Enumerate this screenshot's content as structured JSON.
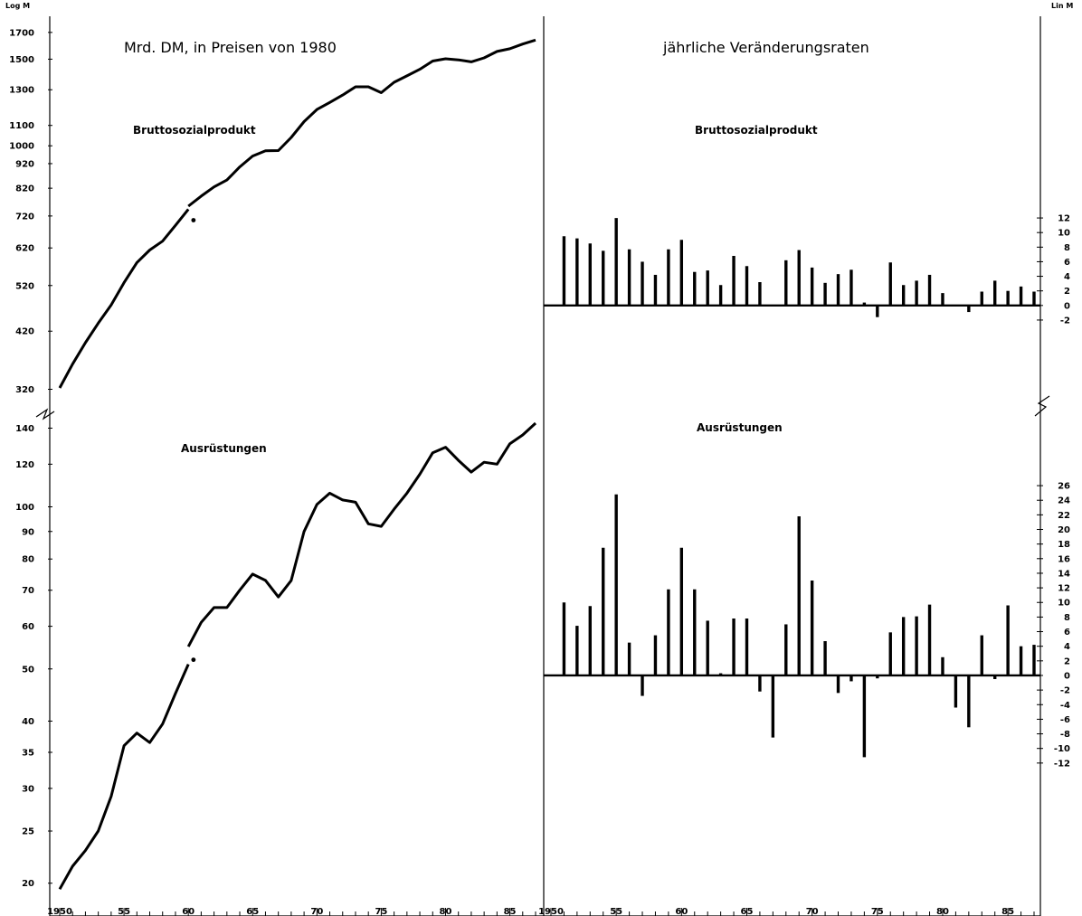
{
  "chart_data": [
    {
      "type": "line",
      "panel": "top-left",
      "title": "Mrd. DM, in Preisen von 1980",
      "label": "Bruttosozialprodukt",
      "axis_note": "Log M",
      "yscale": "log",
      "ylim": [
        310,
        1750
      ],
      "yticks": [
        320,
        420,
        520,
        620,
        720,
        820,
        920,
        1000,
        1100,
        1300,
        1500,
        1700
      ],
      "ytick_labels": [
        "320",
        "420",
        "520",
        "620",
        "720",
        "820",
        "920",
        "1000",
        "1100",
        "1300",
        "1500",
        "1700"
      ],
      "x": [
        1950,
        1951,
        1952,
        1953,
        1954,
        1955,
        1956,
        1957,
        1958,
        1959,
        1960,
        1960,
        1961,
        1962,
        1963,
        1964,
        1965,
        1966,
        1967,
        1968,
        1969,
        1970,
        1971,
        1972,
        1973,
        1974,
        1975,
        1976,
        1977,
        1978,
        1979,
        1980,
        1981,
        1982,
        1983,
        1984,
        1985,
        1986,
        1987
      ],
      "values": [
        322,
        360,
        398,
        436,
        475,
        527,
        579,
        614,
        640,
        689,
        743,
        754,
        790,
        825,
        852,
        906,
        953,
        977,
        978,
        1040,
        1120,
        1185,
        1225,
        1268,
        1318,
        1318,
        1282,
        1346,
        1387,
        1431,
        1487,
        1503,
        1495,
        1481,
        1509,
        1555,
        1575,
        1610,
        1640
      ],
      "break_after_index": 10,
      "marker": {
        "x": 1960.4,
        "y": 706
      }
    },
    {
      "type": "line",
      "panel": "bottom-left",
      "label": "Ausrüstungen",
      "yscale": "log",
      "ylim": [
        19,
        143
      ],
      "yticks": [
        20,
        25,
        30,
        35,
        40,
        50,
        60,
        70,
        80,
        90,
        100,
        120,
        140
      ],
      "ytick_labels": [
        "20",
        "25",
        "30",
        "35",
        "40",
        "50",
        "60",
        "70",
        "80",
        "90",
        "100",
        "120",
        "140"
      ],
      "x": [
        1950,
        1951,
        1952,
        1953,
        1954,
        1955,
        1956,
        1957,
        1958,
        1959,
        1960,
        1960,
        1961,
        1962,
        1963,
        1964,
        1965,
        1966,
        1967,
        1968,
        1969,
        1970,
        1971,
        1972,
        1973,
        1974,
        1975,
        1976,
        1977,
        1978,
        1979,
        1980,
        1981,
        1982,
        1983,
        1984,
        1985,
        1986,
        1987
      ],
      "values": [
        19.5,
        21.5,
        23,
        25,
        29,
        36,
        38,
        36.5,
        39.5,
        45,
        51,
        55,
        61,
        65,
        65,
        70,
        75,
        73,
        68,
        73,
        90,
        101,
        106,
        103,
        102,
        93,
        92,
        99,
        106,
        115,
        126,
        129,
        122,
        116,
        121,
        120,
        131,
        136,
        143
      ],
      "break_after_index": 10,
      "marker": {
        "x": 1960.4,
        "y": 52
      }
    },
    {
      "type": "bar",
      "panel": "top-right",
      "title": "jährliche Veränderungsraten",
      "label": "Bruttosozialprodukt",
      "axis_note": "Lin M",
      "ylim": [
        -3,
        13
      ],
      "yticks": [
        -2,
        0,
        2,
        4,
        6,
        8,
        10,
        12
      ],
      "ytick_labels": [
        "-2",
        "0",
        "2",
        "4",
        "6",
        "8",
        "10",
        "12"
      ],
      "x": [
        1951,
        1952,
        1953,
        1954,
        1955,
        1956,
        1957,
        1958,
        1959,
        1960,
        1961,
        1962,
        1963,
        1964,
        1965,
        1966,
        1967,
        1968,
        1969,
        1970,
        1971,
        1972,
        1973,
        1974,
        1975,
        1976,
        1977,
        1978,
        1979,
        1980,
        1981,
        1982,
        1983,
        1984,
        1985,
        1986,
        1987
      ],
      "values": [
        9.5,
        9.2,
        8.5,
        7.5,
        12.0,
        7.7,
        6.0,
        4.2,
        7.7,
        9.0,
        4.6,
        4.8,
        2.8,
        6.8,
        5.4,
        3.2,
        0.1,
        6.2,
        7.6,
        5.2,
        3.1,
        4.3,
        4.9,
        0.4,
        -1.6,
        5.9,
        2.8,
        3.4,
        4.2,
        1.7,
        -0.1,
        -0.9,
        1.9,
        3.4,
        2.0,
        2.6,
        1.9
      ]
    },
    {
      "type": "bar",
      "panel": "bottom-right",
      "label": "Ausrüstungen",
      "ylim": [
        -14,
        27
      ],
      "yticks": [
        -12,
        -10,
        -8,
        -6,
        -4,
        -2,
        0,
        2,
        4,
        6,
        8,
        10,
        12,
        14,
        16,
        18,
        20,
        22,
        24,
        26
      ],
      "ytick_labels": [
        "-12",
        "-10",
        "-8",
        "-6",
        "-4",
        "-2",
        "0",
        "2",
        "4",
        "6",
        "8",
        "10",
        "12",
        "14",
        "16",
        "18",
        "20",
        "22",
        "24",
        "26"
      ],
      "x": [
        1951,
        1952,
        1953,
        1954,
        1955,
        1956,
        1957,
        1958,
        1959,
        1960,
        1961,
        1962,
        1963,
        1964,
        1965,
        1966,
        1967,
        1968,
        1969,
        1970,
        1971,
        1972,
        1973,
        1974,
        1975,
        1976,
        1977,
        1978,
        1979,
        1980,
        1981,
        1982,
        1983,
        1984,
        1985,
        1986,
        1987
      ],
      "values": [
        10,
        6.8,
        9.5,
        17.5,
        24.8,
        4.5,
        -2.8,
        5.5,
        11.8,
        17.5,
        11.8,
        7.5,
        0.3,
        7.8,
        7.8,
        -2.2,
        -8.5,
        7.0,
        21.8,
        13.0,
        4.7,
        -2.4,
        -0.8,
        -11.2,
        -0.4,
        5.9,
        8.0,
        8.1,
        9.7,
        2.5,
        -4.4,
        -7.1,
        5.5,
        -0.5,
        9.6,
        4.0,
        4.2
      ]
    }
  ],
  "x_axis": {
    "left_ticks": [
      1950,
      1955,
      1960,
      1965,
      1970,
      1975,
      1980,
      1985
    ],
    "left_labels": [
      "1950",
      "55",
      "60",
      "65",
      "70",
      "75",
      "80",
      "85"
    ],
    "right_ticks": [
      1950,
      1955,
      1960,
      1965,
      1970,
      1975,
      1980,
      1985
    ],
    "right_labels": [
      "1950",
      "55",
      "60",
      "65",
      "70",
      "75",
      "80",
      "85"
    ]
  }
}
